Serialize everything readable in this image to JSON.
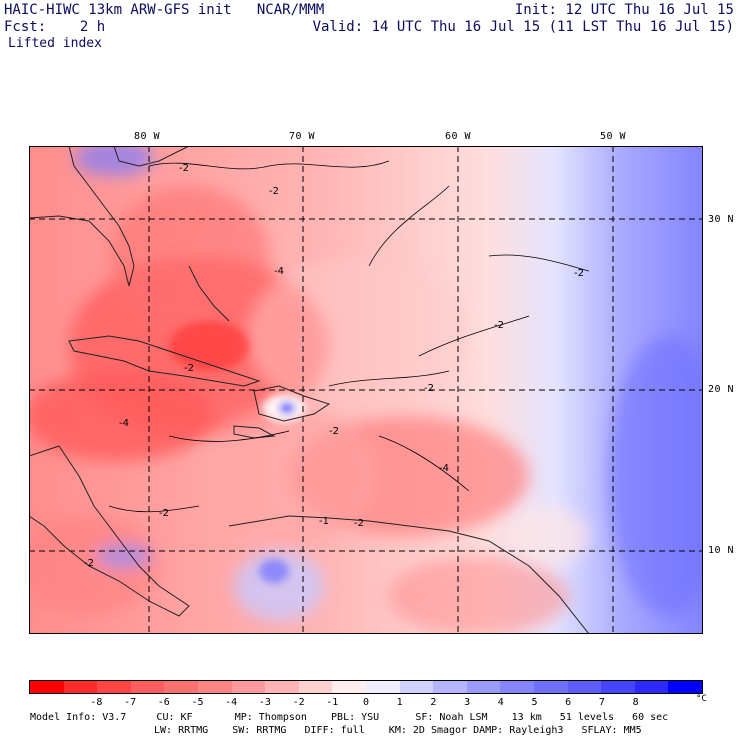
{
  "header": {
    "title": "HAIC-HIWC 13km ARW-GFS init   NCAR/MMM",
    "init": "Init: 12 UTC Thu 16 Jul 15",
    "fcst": "Fcst:    2 h",
    "valid": "Valid: 14 UTC Thu 16 Jul 15 (11 LST Thu 16 Jul 15)",
    "field": "Lifted index"
  },
  "axes": {
    "lon_labels": [
      "80 W",
      "70 W",
      "60 W",
      "50 W"
    ],
    "lat_labels": [
      "30 N",
      "20 N",
      "10 N"
    ]
  },
  "contour_labels": [
    "-2",
    "-2",
    "-2",
    "-2",
    "-2",
    "-2",
    "-2",
    "-2",
    "-4",
    "-4",
    "-4",
    "-2",
    "-1",
    "-2"
  ],
  "colorbar": {
    "ticks": [
      "-8",
      "-7",
      "-6",
      "-5",
      "-4",
      "-3",
      "-2",
      "-1",
      "0",
      "1",
      "2",
      "3",
      "4",
      "5",
      "6",
      "7",
      "8"
    ],
    "unit": "°C",
    "colors": [
      "#ff0000",
      "#ff2a2a",
      "#ff4545",
      "#ff5e5e",
      "#ff7070",
      "#ff8585",
      "#ff9a9a",
      "#ffb5b5",
      "#ffd2d2",
      "#ffeeee",
      "#eeeeff",
      "#d2d2ff",
      "#b5b5ff",
      "#9a9aff",
      "#8585ff",
      "#7070ff",
      "#5e5eff",
      "#4545ff",
      "#2a2aff",
      "#0000ff"
    ]
  },
  "model_info": {
    "line1": "Model Info: V3.7     CU: KF       MP: Thompson    PBL: YSU      SF: Noah LSM    13 km   51 levels   60 sec",
    "line2": "LW: RRTMG    SW: RRTMG   DIFF: full    KM: 2D Smagor DAMP: Rayleigh3   SFLAY: MM5"
  }
}
